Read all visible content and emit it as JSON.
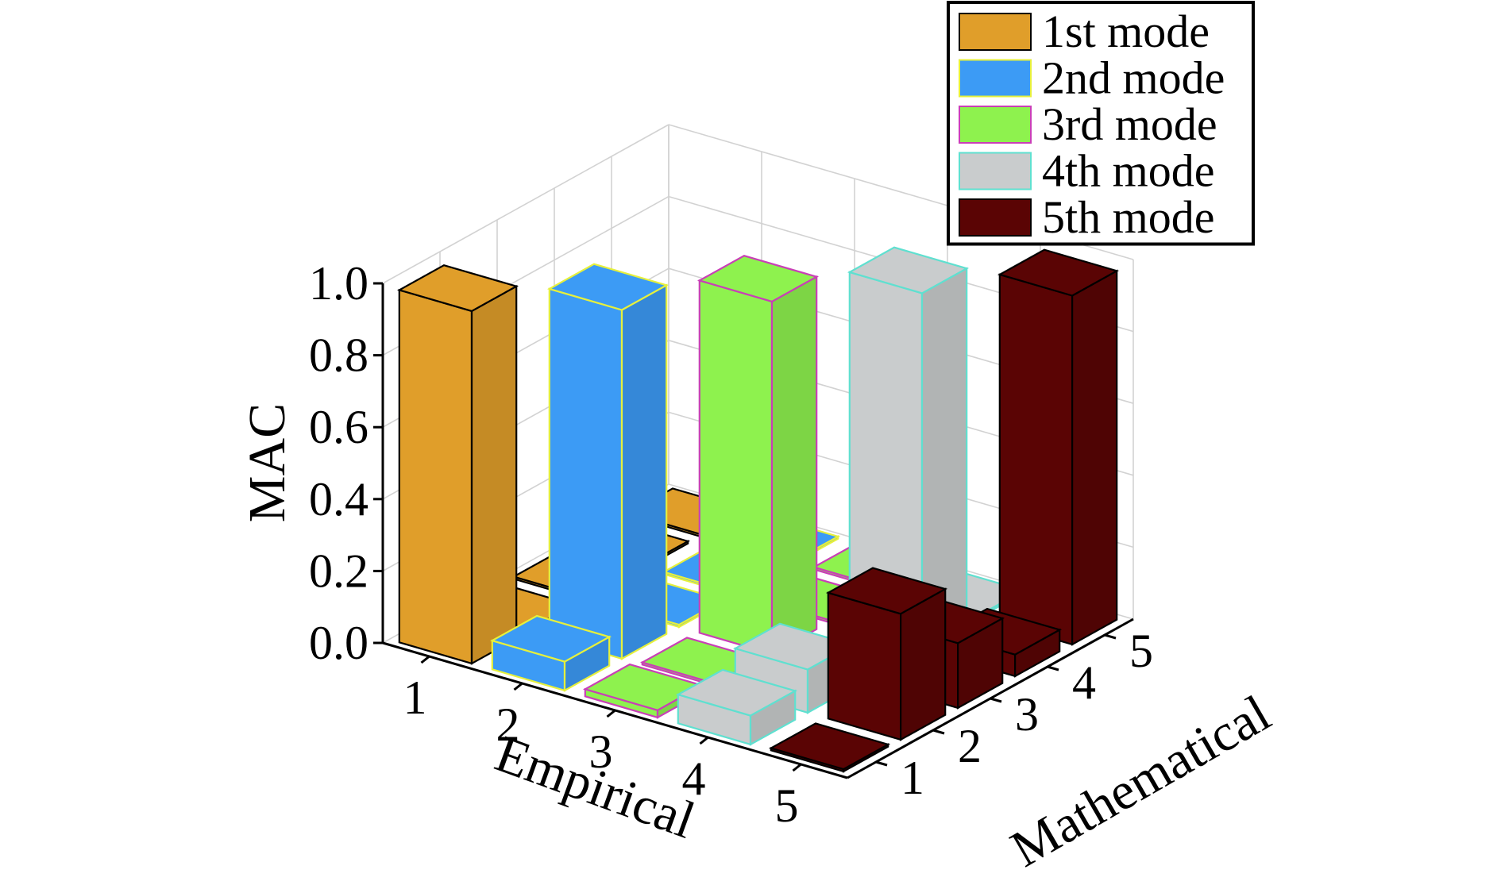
{
  "chart_data": {
    "type": "bar3d",
    "title": "",
    "xlabel": "Empirical",
    "ylabel": "Mathematical",
    "zlabel": "MAC",
    "x_categories": [
      "1",
      "2",
      "3",
      "4",
      "5"
    ],
    "y_categories": [
      "1",
      "2",
      "3",
      "4",
      "5"
    ],
    "zlim": [
      0,
      1
    ],
    "z_ticks": [
      "0.0",
      "0.2",
      "0.4",
      "0.6",
      "0.8",
      "1.0"
    ],
    "grid": true,
    "legend_position": "top-right",
    "series": [
      {
        "name": "1st mode",
        "color": "#E09E2A",
        "edge": "#000000",
        "values": [
          0.98,
          0.0,
          0.0,
          0.0,
          0.0
        ]
      },
      {
        "name": "2nd mode",
        "color": "#3C9BF5",
        "edge": "#E6F03C",
        "values": [
          0.08,
          0.97,
          0.0,
          0.0,
          0.0
        ]
      },
      {
        "name": "3rd mode",
        "color": "#8EF24E",
        "edge": "#C93FB7",
        "values": [
          0.02,
          0.0,
          0.98,
          0.0,
          0.0
        ]
      },
      {
        "name": "4th mode",
        "color": "#C9CCCD",
        "edge": "#5FE0D0",
        "values": [
          0.08,
          0.12,
          0.0,
          0.99,
          0.0
        ]
      },
      {
        "name": "5th mode",
        "color": "#5A0404",
        "edge": "#000000",
        "values": [
          0.0,
          0.35,
          0.18,
          0.06,
          0.97
        ]
      }
    ]
  }
}
